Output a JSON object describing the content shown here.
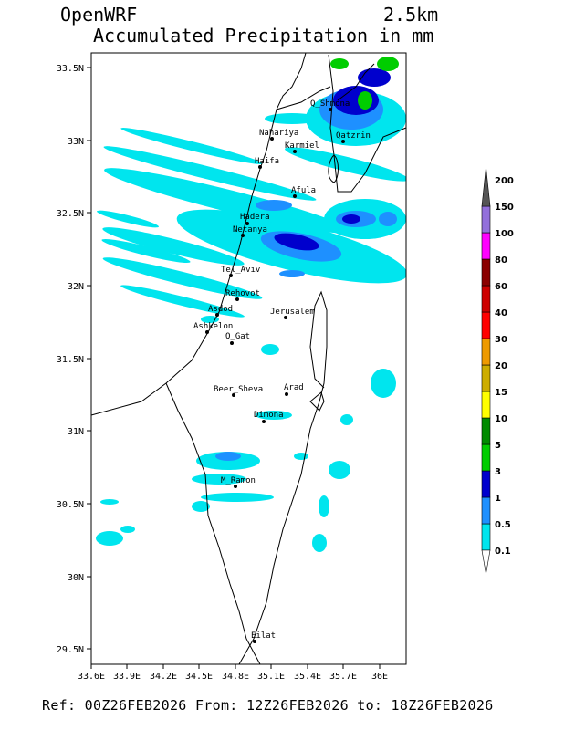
{
  "header": {
    "model": "OpenWRF",
    "resolution": "2.5km",
    "title": "Accumulated Precipitation in mm"
  },
  "footer": {
    "text": "Ref: 00Z26FEB2026  From: 12Z26FEB2026 to: 18Z26FEB2026"
  },
  "map": {
    "lat_ticks": [
      "33.5N",
      "33N",
      "32.5N",
      "32N",
      "31.5N",
      "31N",
      "30.5N",
      "30N",
      "29.5N"
    ],
    "lon_ticks": [
      "33.6E",
      "33.9E",
      "34.2E",
      "34.5E",
      "34.8E",
      "35.1E",
      "35.4E",
      "35.7E",
      "36E"
    ],
    "cities": [
      {
        "name": "Q_Shmona"
      },
      {
        "name": "Nahariya"
      },
      {
        "name": "Qatzrin"
      },
      {
        "name": "Karmiel"
      },
      {
        "name": "Haifa"
      },
      {
        "name": "Afula"
      },
      {
        "name": "Hadera"
      },
      {
        "name": "Netanya"
      },
      {
        "name": "Tel_Aviv"
      },
      {
        "name": "Rehovot"
      },
      {
        "name": "Asdod"
      },
      {
        "name": "Jerusalem"
      },
      {
        "name": "Ashkelon"
      },
      {
        "name": "Q_Gat"
      },
      {
        "name": "Beer_Sheva"
      },
      {
        "name": "Arad"
      },
      {
        "name": "Dimona"
      },
      {
        "name": "M_Ramon"
      },
      {
        "name": "Eilat"
      }
    ]
  },
  "colorbar": {
    "levels": [
      "0.1",
      "0.5",
      "1",
      "3",
      "5",
      "10",
      "15",
      "20",
      "30",
      "40",
      "60",
      "80",
      "100",
      "150",
      "200"
    ],
    "colors": [
      "#00e5ee",
      "#1e90ff",
      "#0000cd",
      "#00cd00",
      "#008b00",
      "#ffff00",
      "#cdad00",
      "#ee9a00",
      "#ff0000",
      "#cd0000",
      "#8b0000",
      "#ff00ff",
      "#9370db",
      "#555555"
    ]
  }
}
